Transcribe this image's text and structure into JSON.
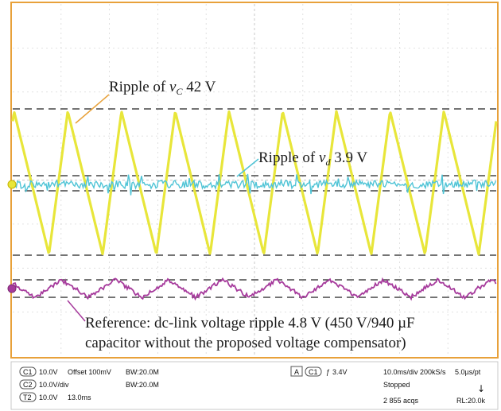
{
  "chart_data": {
    "type": "line",
    "title": "",
    "xlabel": "",
    "ylabel": "",
    "grid": true,
    "grid_divisions": {
      "x": 10,
      "y": 8
    },
    "channels": [
      {
        "id": "C1",
        "name": "",
        "color": "#e8e63a",
        "ripple_V": 42,
        "waveform": "sawtooth",
        "cycles_per_screen": 9,
        "style": "thick"
      },
      {
        "id": "C2",
        "name": "",
        "color": "#4fc4d6",
        "ripple_V": 3.9,
        "waveform": "noise",
        "style": "noisy"
      },
      {
        "id": "C3",
        "name": "",
        "color": "#a63a9c",
        "ripple_V": 4.8,
        "waveform": "triangle",
        "cycles_per_screen": 9,
        "style": "thin"
      }
    ],
    "annotations": {
      "vc": {
        "prefix": "Ripple of ",
        "sym": "v",
        "sub": "C",
        "suffix": " 42 V"
      },
      "vd": {
        "prefix": "Ripple of ",
        "sym": "v",
        "sub": "d",
        "suffix": " 3.9 V"
      },
      "ref_line1": "Reference: dc-link voltage ripple 4.8 V (450 V/940 µF",
      "ref_line2": "capacitor without the proposed voltage compensator)"
    }
  },
  "status_bar": {
    "ch1": {
      "badge": "C1",
      "scale": "10.0V",
      "offset": "Offset 100mV",
      "bw": "BW:20.0M"
    },
    "ch2": {
      "badge": "C2",
      "scale": "10.0V/div",
      "bw": "BW:20.0M"
    },
    "ch3": {
      "badge": "T2",
      "scale": "10.0V",
      "time": "13.0ms"
    },
    "trigger": {
      "mode": "A",
      "source": "C1",
      "level": "3.4V"
    },
    "acq": {
      "timebase": "10.0ms/div 200kS/s",
      "res": "5.0µs/pt",
      "state": "Stopped",
      "acqs": "2 855 acqs",
      "rl": "RL:20.0k"
    }
  }
}
